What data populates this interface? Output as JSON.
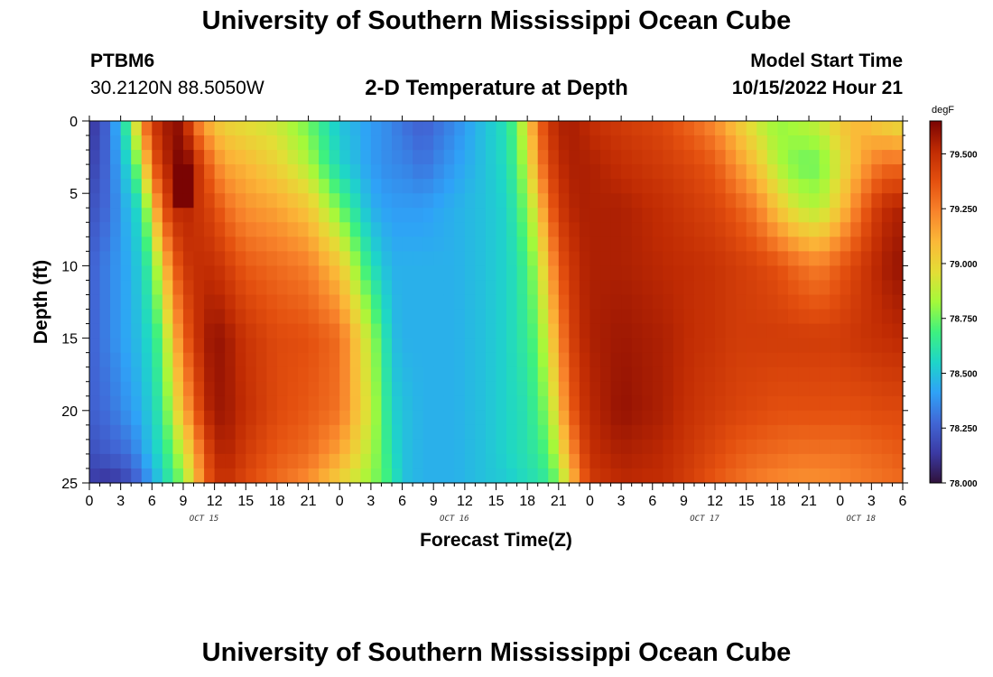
{
  "header": {
    "title": "University of Southern Mississippi Ocean Cube",
    "station_id": "PTBM6",
    "station_coords": "30.2120N  88.5050W",
    "plot_title": "2-D Temperature at Depth",
    "start_label": "Model Start Time",
    "start_value": "10/15/2022 Hour 21"
  },
  "footer": {
    "title": "University of Southern Mississippi Ocean Cube"
  },
  "colors": {
    "scale": [
      "#30123b",
      "#3b3aa4",
      "#4167d6",
      "#2fa2f7",
      "#1ed5c9",
      "#3ef17f",
      "#a4f93a",
      "#e4dd36",
      "#fbb838",
      "#f8832b",
      "#e4500f",
      "#c02b03",
      "#7a0403"
    ]
  },
  "chart_data": {
    "type": "heatmap",
    "title": "2-D Temperature at Depth",
    "xlabel": "Forecast Time(Z)",
    "ylabel": "Depth (ft)",
    "x_tick_labels": [
      "0",
      "3",
      "6",
      "9",
      "12",
      "15",
      "18",
      "21",
      "0",
      "3",
      "6",
      "9",
      "12",
      "15",
      "18",
      "21",
      "0",
      "3",
      "6",
      "9",
      "12",
      "15",
      "18",
      "21",
      "0",
      "3",
      "6"
    ],
    "x_range_hours": [
      0,
      78
    ],
    "date_labels": [
      {
        "text": "OCT 15",
        "hour": 11
      },
      {
        "text": "OCT 16",
        "hour": 35
      },
      {
        "text": "OCT 17",
        "hour": 59
      },
      {
        "text": "OCT 18",
        "hour": 74
      }
    ],
    "y_ticks": [
      0,
      5,
      10,
      15,
      20,
      25
    ],
    "y_tick_labels": [
      "0",
      "5",
      "10",
      "15",
      "20",
      "25"
    ],
    "ylim": [
      0,
      25
    ],
    "y_inverted": true,
    "colorbar": {
      "unit": "degF",
      "min": 78.0,
      "max": 79.65,
      "ticks": [
        78.0,
        78.25,
        78.5,
        78.75,
        79.0,
        79.25,
        79.5
      ],
      "tick_labels": [
        "78.000",
        "78.250",
        "78.500",
        "78.750",
        "79.000",
        "79.250",
        "79.500"
      ]
    },
    "grid_columns": 78,
    "grid_rows": 25,
    "depth_profile_depths_ft": [
      0,
      3,
      6,
      10,
      15,
      20,
      23,
      25
    ],
    "temperature_by_hour": [
      {
        "hour": 0,
        "temps": [
          78.1,
          78.15,
          78.2,
          78.25,
          78.25,
          78.25,
          78.2,
          78.15
        ]
      },
      {
        "hour": 2,
        "temps": [
          78.3,
          78.3,
          78.3,
          78.35,
          78.35,
          78.3,
          78.25,
          78.1
        ]
      },
      {
        "hour": 4,
        "temps": [
          78.75,
          78.6,
          78.5,
          78.45,
          78.45,
          78.4,
          78.3,
          78.2
        ]
      },
      {
        "hour": 5,
        "temps": [
          79.2,
          78.9,
          78.6,
          78.55,
          78.5,
          78.45,
          78.4,
          78.3
        ]
      },
      {
        "hour": 6,
        "temps": [
          79.45,
          79.3,
          79.0,
          78.7,
          78.6,
          78.55,
          78.5,
          78.4
        ]
      },
      {
        "hour": 7,
        "temps": [
          79.55,
          79.5,
          79.35,
          79.0,
          78.75,
          78.65,
          78.6,
          78.55
        ]
      },
      {
        "hour": 8,
        "temps": [
          79.6,
          79.58,
          79.5,
          79.3,
          79.05,
          78.9,
          78.75,
          78.65
        ]
      },
      {
        "hour": 9,
        "temps": [
          79.6,
          79.7,
          79.55,
          79.45,
          79.3,
          79.1,
          78.9,
          78.8
        ]
      },
      {
        "hour": 10,
        "temps": [
          79.3,
          79.55,
          79.5,
          79.5,
          79.45,
          79.3,
          79.1,
          79.0
        ]
      },
      {
        "hour": 11,
        "temps": [
          79.15,
          79.4,
          79.45,
          79.5,
          79.55,
          79.5,
          79.35,
          79.3
        ]
      },
      {
        "hour": 12,
        "temps": [
          79.05,
          79.25,
          79.4,
          79.5,
          79.6,
          79.58,
          79.5,
          79.45
        ]
      },
      {
        "hour": 13,
        "temps": [
          79.0,
          79.15,
          79.3,
          79.45,
          79.58,
          79.58,
          79.55,
          79.5
        ]
      },
      {
        "hour": 15,
        "temps": [
          78.95,
          79.1,
          79.2,
          79.35,
          79.48,
          79.5,
          79.45,
          79.4
        ]
      },
      {
        "hour": 18,
        "temps": [
          78.9,
          79.0,
          79.15,
          79.3,
          79.4,
          79.4,
          79.35,
          79.3
        ]
      },
      {
        "hour": 21,
        "temps": [
          78.75,
          78.85,
          79.05,
          79.25,
          79.38,
          79.35,
          79.3,
          79.2
        ]
      },
      {
        "hour": 24,
        "temps": [
          78.5,
          78.55,
          78.75,
          79.05,
          79.3,
          79.28,
          79.15,
          79.0
        ]
      },
      {
        "hour": 27,
        "temps": [
          78.4,
          78.4,
          78.45,
          78.6,
          78.85,
          78.9,
          78.85,
          78.8
        ]
      },
      {
        "hour": 29,
        "temps": [
          78.35,
          78.35,
          78.4,
          78.45,
          78.5,
          78.55,
          78.6,
          78.65
        ]
      },
      {
        "hour": 30,
        "temps": [
          78.3,
          78.35,
          78.4,
          78.45,
          78.45,
          78.5,
          78.5,
          78.5
        ]
      },
      {
        "hour": 32,
        "temps": [
          78.25,
          78.3,
          78.4,
          78.45,
          78.45,
          78.45,
          78.45,
          78.45
        ]
      },
      {
        "hour": 35,
        "temps": [
          78.35,
          78.4,
          78.45,
          78.45,
          78.45,
          78.45,
          78.45,
          78.45
        ]
      },
      {
        "hour": 38,
        "temps": [
          78.5,
          78.5,
          78.5,
          78.5,
          78.5,
          78.5,
          78.5,
          78.5
        ]
      },
      {
        "hour": 40,
        "temps": [
          78.6,
          78.58,
          78.55,
          78.55,
          78.55,
          78.55,
          78.55,
          78.52
        ]
      },
      {
        "hour": 41,
        "temps": [
          78.75,
          78.7,
          78.65,
          78.6,
          78.6,
          78.58,
          78.58,
          78.55
        ]
      },
      {
        "hour": 42,
        "temps": [
          79.0,
          78.9,
          78.8,
          78.7,
          78.65,
          78.6,
          78.6,
          78.58
        ]
      },
      {
        "hour": 43,
        "temps": [
          79.3,
          79.2,
          79.0,
          78.85,
          78.75,
          78.7,
          78.65,
          78.6
        ]
      },
      {
        "hour": 44,
        "temps": [
          79.45,
          79.4,
          79.3,
          79.1,
          78.95,
          78.8,
          78.72,
          78.65
        ]
      },
      {
        "hour": 45,
        "temps": [
          79.55,
          79.5,
          79.45,
          79.35,
          79.2,
          79.05,
          78.9,
          78.78
        ]
      },
      {
        "hour": 46,
        "temps": [
          79.55,
          79.55,
          79.52,
          79.45,
          79.4,
          79.3,
          79.15,
          79.0
        ]
      },
      {
        "hour": 47,
        "temps": [
          79.55,
          79.55,
          79.55,
          79.52,
          79.5,
          79.45,
          79.35,
          79.25
        ]
      },
      {
        "hour": 48,
        "temps": [
          79.5,
          79.55,
          79.55,
          79.55,
          79.55,
          79.52,
          79.5,
          79.45
        ]
      },
      {
        "hour": 51,
        "temps": [
          79.45,
          79.5,
          79.55,
          79.55,
          79.58,
          79.6,
          79.55,
          79.52
        ]
      },
      {
        "hour": 55,
        "temps": [
          79.4,
          79.45,
          79.5,
          79.52,
          79.55,
          79.55,
          79.52,
          79.5
        ]
      },
      {
        "hour": 58,
        "temps": [
          79.3,
          79.4,
          79.45,
          79.5,
          79.5,
          79.48,
          79.45,
          79.42
        ]
      },
      {
        "hour": 60,
        "temps": [
          79.2,
          79.35,
          79.42,
          79.48,
          79.48,
          79.45,
          79.4,
          79.35
        ]
      },
      {
        "hour": 62,
        "temps": [
          79.05,
          79.2,
          79.35,
          79.45,
          79.45,
          79.42,
          79.35,
          79.3
        ]
      },
      {
        "hour": 64,
        "temps": [
          78.9,
          79.05,
          79.25,
          79.42,
          79.45,
          79.4,
          79.32,
          79.25
        ]
      },
      {
        "hour": 66,
        "temps": [
          78.8,
          78.85,
          79.05,
          79.38,
          79.45,
          79.38,
          79.3,
          79.22
        ]
      },
      {
        "hour": 68,
        "temps": [
          78.85,
          78.75,
          78.9,
          79.3,
          79.45,
          79.38,
          79.28,
          79.2
        ]
      },
      {
        "hour": 70,
        "temps": [
          78.9,
          78.75,
          78.85,
          79.25,
          79.45,
          79.38,
          79.28,
          79.2
        ]
      },
      {
        "hour": 72,
        "temps": [
          79.05,
          78.95,
          79.05,
          79.35,
          79.45,
          79.38,
          79.28,
          79.22
        ]
      },
      {
        "hour": 74,
        "temps": [
          79.1,
          79.15,
          79.3,
          79.45,
          79.48,
          79.38,
          79.3,
          79.25
        ]
      },
      {
        "hour": 76,
        "temps": [
          79.0,
          79.3,
          79.5,
          79.55,
          79.5,
          79.4,
          79.32,
          79.28
        ]
      },
      {
        "hour": 78,
        "temps": [
          78.95,
          79.3,
          79.55,
          79.6,
          79.52,
          79.4,
          79.35,
          79.3
        ]
      }
    ],
    "hot_spot": {
      "hour": 9,
      "depth_ft": 4.5,
      "value": 79.7
    }
  }
}
